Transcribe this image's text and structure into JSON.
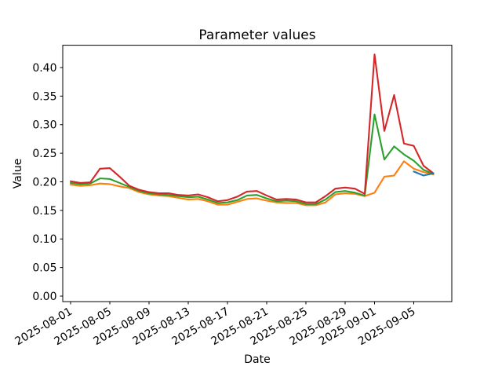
{
  "chart_data": {
    "type": "line",
    "title": "Parameter values",
    "xlabel": "Date",
    "ylabel": "Value",
    "grid": false,
    "legend": "none",
    "ylim": [
      -0.01,
      0.439
    ],
    "y_ticks": [
      0.0,
      0.05,
      0.1,
      0.15,
      0.2,
      0.25,
      0.3,
      0.35,
      0.4
    ],
    "y_tick_labels": [
      "0.00",
      "0.05",
      "0.10",
      "0.15",
      "0.20",
      "0.25",
      "0.30",
      "0.35",
      "0.40"
    ],
    "x_tick_labels": [
      "2025-08-01",
      "2025-08-05",
      "2025-08-09",
      "2025-08-13",
      "2025-08-17",
      "2025-08-21",
      "2025-08-25",
      "2025-08-29",
      "2025-09-01",
      "2025-09-05"
    ],
    "x_tick_day_offsets": [
      0,
      4,
      8,
      12,
      16,
      20,
      24,
      28,
      31,
      35
    ],
    "x": [
      "2025-08-01",
      "2025-08-02",
      "2025-08-03",
      "2025-08-04",
      "2025-08-05",
      "2025-08-06",
      "2025-08-07",
      "2025-08-08",
      "2025-08-09",
      "2025-08-10",
      "2025-08-11",
      "2025-08-12",
      "2025-08-13",
      "2025-08-14",
      "2025-08-15",
      "2025-08-16",
      "2025-08-17",
      "2025-08-18",
      "2025-08-19",
      "2025-08-20",
      "2025-08-21",
      "2025-08-22",
      "2025-08-23",
      "2025-08-24",
      "2025-08-25",
      "2025-08-26",
      "2025-08-27",
      "2025-08-28",
      "2025-08-29",
      "2025-08-30",
      "2025-08-31",
      "2025-09-01",
      "2025-09-02",
      "2025-09-03",
      "2025-09-04",
      "2025-09-05",
      "2025-09-06",
      "2025-09-07"
    ],
    "series": [
      {
        "name": "orange-series",
        "color": "#ff7f0e",
        "values": [
          0.195,
          0.193,
          0.194,
          0.197,
          0.196,
          0.192,
          0.189,
          0.182,
          0.178,
          0.176,
          0.175,
          0.172,
          0.169,
          0.17,
          0.166,
          0.16,
          0.16,
          0.165,
          0.17,
          0.171,
          0.167,
          0.164,
          0.163,
          0.163,
          0.159,
          0.159,
          0.164,
          0.178,
          0.18,
          0.179,
          0.175,
          0.181,
          0.209,
          0.211,
          0.236,
          0.223,
          0.217,
          0.213
        ]
      },
      {
        "name": "green-series",
        "color": "#2ca02c",
        "values": [
          0.198,
          0.196,
          0.197,
          0.206,
          0.205,
          0.198,
          0.191,
          0.184,
          0.18,
          0.178,
          0.177,
          0.175,
          0.173,
          0.174,
          0.169,
          0.163,
          0.164,
          0.168,
          0.176,
          0.177,
          0.171,
          0.166,
          0.167,
          0.166,
          0.161,
          0.161,
          0.169,
          0.182,
          0.184,
          0.181,
          0.176,
          0.318,
          0.239,
          0.262,
          0.248,
          0.237,
          0.221,
          0.214
        ]
      },
      {
        "name": "red-series",
        "color": "#d62728",
        "values": [
          0.201,
          0.198,
          0.199,
          0.223,
          0.224,
          0.209,
          0.193,
          0.186,
          0.182,
          0.18,
          0.18,
          0.177,
          0.176,
          0.178,
          0.173,
          0.166,
          0.168,
          0.174,
          0.183,
          0.184,
          0.176,
          0.169,
          0.17,
          0.169,
          0.164,
          0.164,
          0.175,
          0.188,
          0.19,
          0.188,
          0.179,
          0.423,
          0.289,
          0.352,
          0.267,
          0.263,
          0.228,
          0.215
        ]
      },
      {
        "name": "blue-series",
        "color": "#1f77b4",
        "values": [
          null,
          null,
          null,
          null,
          null,
          null,
          null,
          null,
          null,
          null,
          null,
          null,
          null,
          null,
          null,
          null,
          null,
          null,
          null,
          null,
          null,
          null,
          null,
          null,
          null,
          null,
          null,
          null,
          null,
          null,
          null,
          null,
          null,
          null,
          null,
          0.218,
          0.211,
          0.215
        ]
      }
    ]
  }
}
